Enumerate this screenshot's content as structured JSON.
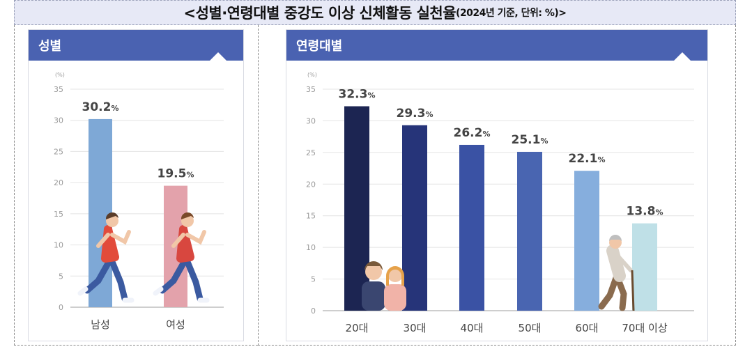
{
  "title": {
    "main": "<성별·연령대별 중강도 이상 신체활동 실천율",
    "sub": "(2024년 기준, 단위: %)>"
  },
  "colors": {
    "header": "#4a62b1",
    "male": "#7ea8d6",
    "female": "#e3a2ab",
    "age_20": "#1c2552",
    "age_30": "#263479",
    "age_40": "#3a52a4",
    "age_50": "#4965b1",
    "age_60": "#86aedd",
    "age_70": "#bfe0e7"
  },
  "chart_data": [
    {
      "type": "bar",
      "panel_title": "성별",
      "unit_label": "(%)",
      "value_unit": "%",
      "categories": [
        "남성",
        "여성"
      ],
      "values": [
        30.2,
        19.5
      ],
      "value_labels": [
        "30.2",
        "19.5"
      ],
      "ylim": [
        0,
        35
      ],
      "yticks": [
        0,
        5,
        10,
        15,
        20,
        25,
        30,
        35
      ],
      "grid": true,
      "icons": [
        "runner-male-icon",
        "runner-female-icon"
      ]
    },
    {
      "type": "bar",
      "panel_title": "연령대별",
      "unit_label": "(%)",
      "value_unit": "%",
      "categories": [
        "20대",
        "30대",
        "40대",
        "50대",
        "60대",
        "70대 이상"
      ],
      "values": [
        32.3,
        29.3,
        26.2,
        25.1,
        22.1,
        13.8
      ],
      "value_labels": [
        "32.3",
        "29.3",
        "26.2",
        "25.1",
        "22.1",
        "13.8"
      ],
      "ylim": [
        0,
        35
      ],
      "yticks": [
        0,
        5,
        10,
        15,
        20,
        25,
        30,
        35
      ],
      "grid": true,
      "icons": [
        "young-couple-icon",
        "elderly-cane-icon"
      ]
    }
  ]
}
